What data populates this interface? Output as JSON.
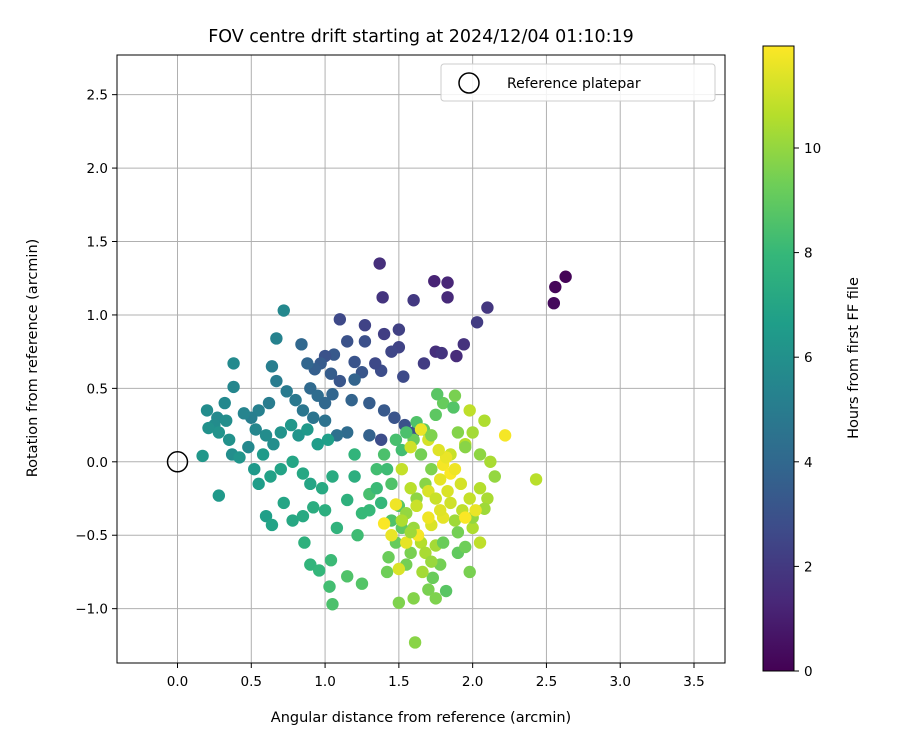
{
  "chart_data": {
    "type": "scatter",
    "title": "FOV centre drift starting at 2024/12/04 01:10:19",
    "xlabel": "Angular distance from reference (arcmin)",
    "ylabel": "Rotation from reference (arcmin)",
    "xlim": [
      -0.41,
      3.71
    ],
    "ylim": [
      -1.37,
      2.77
    ],
    "xticks": [
      "0.0",
      "0.5",
      "1.0",
      "1.5",
      "2.0",
      "2.5",
      "3.0",
      "3.5"
    ],
    "yticks": [
      "−1.0",
      "−0.5",
      "0.0",
      "0.5",
      "1.0",
      "1.5",
      "2.0",
      "2.5"
    ],
    "xtick_values": [
      0,
      0.5,
      1,
      1.5,
      2,
      2.5,
      3,
      3.5
    ],
    "ytick_values": [
      -1,
      -0.5,
      0,
      0.5,
      1,
      1.5,
      2,
      2.5
    ],
    "grid": true,
    "legend": {
      "placement": "top-right",
      "entries": [
        "Reference platepar"
      ]
    },
    "reference_point": {
      "x": 0.0,
      "y": 0.0,
      "label": "Reference platepar"
    },
    "colorbar": {
      "label": "Hours from first FF file",
      "colormap": "viridis",
      "range": [
        0,
        11.95
      ],
      "ticks": [
        "0",
        "2",
        "4",
        "6",
        "8",
        "10"
      ],
      "tick_values": [
        0,
        2,
        4,
        6,
        8,
        10
      ]
    },
    "points": [
      {
        "x": 2.63,
        "y": 1.26,
        "h": 0.1
      },
      {
        "x": 2.56,
        "y": 1.19,
        "h": 0.2
      },
      {
        "x": 2.55,
        "y": 1.08,
        "h": 0.3
      },
      {
        "x": 1.37,
        "y": 1.35,
        "h": 1.6
      },
      {
        "x": 1.39,
        "y": 1.12,
        "h": 1.8
      },
      {
        "x": 1.74,
        "y": 1.23,
        "h": 1.2
      },
      {
        "x": 1.83,
        "y": 1.22,
        "h": 1.3
      },
      {
        "x": 1.83,
        "y": 1.12,
        "h": 1.4
      },
      {
        "x": 1.6,
        "y": 1.1,
        "h": 2.0
      },
      {
        "x": 2.1,
        "y": 1.05,
        "h": 1.9
      },
      {
        "x": 2.03,
        "y": 0.95,
        "h": 2.1
      },
      {
        "x": 1.5,
        "y": 0.9,
        "h": 2.3
      },
      {
        "x": 1.4,
        "y": 0.87,
        "h": 2.2
      },
      {
        "x": 1.27,
        "y": 0.93,
        "h": 2.4
      },
      {
        "x": 1.1,
        "y": 0.97,
        "h": 2.6
      },
      {
        "x": 1.94,
        "y": 0.8,
        "h": 1.7
      },
      {
        "x": 1.89,
        "y": 0.72,
        "h": 1.5
      },
      {
        "x": 1.75,
        "y": 0.75,
        "h": 1.6
      },
      {
        "x": 1.79,
        "y": 0.74,
        "h": 1.8
      },
      {
        "x": 1.67,
        "y": 0.67,
        "h": 2.1
      },
      {
        "x": 1.5,
        "y": 0.78,
        "h": 2.4
      },
      {
        "x": 1.45,
        "y": 0.75,
        "h": 2.5
      },
      {
        "x": 1.53,
        "y": 0.58,
        "h": 2.7
      },
      {
        "x": 1.38,
        "y": 0.62,
        "h": 2.8
      },
      {
        "x": 1.34,
        "y": 0.67,
        "h": 2.6
      },
      {
        "x": 1.27,
        "y": 0.82,
        "h": 2.9
      },
      {
        "x": 1.15,
        "y": 0.82,
        "h": 3.0
      },
      {
        "x": 1.2,
        "y": 0.68,
        "h": 3.1
      },
      {
        "x": 1.25,
        "y": 0.61,
        "h": 3.2
      },
      {
        "x": 1.06,
        "y": 0.73,
        "h": 3.3
      },
      {
        "x": 1.0,
        "y": 0.72,
        "h": 3.0
      },
      {
        "x": 0.97,
        "y": 0.67,
        "h": 3.4
      },
      {
        "x": 0.93,
        "y": 0.63,
        "h": 3.6
      },
      {
        "x": 1.04,
        "y": 0.6,
        "h": 3.5
      },
      {
        "x": 1.1,
        "y": 0.55,
        "h": 3.2
      },
      {
        "x": 1.2,
        "y": 0.56,
        "h": 3.8
      },
      {
        "x": 0.88,
        "y": 0.67,
        "h": 3.9
      },
      {
        "x": 0.84,
        "y": 0.8,
        "h": 4.0
      },
      {
        "x": 0.9,
        "y": 0.5,
        "h": 4.1
      },
      {
        "x": 0.95,
        "y": 0.45,
        "h": 4.2
      },
      {
        "x": 1.0,
        "y": 0.4,
        "h": 4.0
      },
      {
        "x": 1.05,
        "y": 0.46,
        "h": 3.9
      },
      {
        "x": 1.18,
        "y": 0.42,
        "h": 3.8
      },
      {
        "x": 1.3,
        "y": 0.4,
        "h": 3.5
      },
      {
        "x": 1.4,
        "y": 0.35,
        "h": 3.3
      },
      {
        "x": 1.47,
        "y": 0.3,
        "h": 3.1
      },
      {
        "x": 1.54,
        "y": 0.25,
        "h": 3.0
      },
      {
        "x": 1.6,
        "y": 0.2,
        "h": 2.9
      },
      {
        "x": 1.38,
        "y": 0.15,
        "h": 2.8
      },
      {
        "x": 1.3,
        "y": 0.18,
        "h": 3.7
      },
      {
        "x": 1.15,
        "y": 0.2,
        "h": 4.2
      },
      {
        "x": 1.08,
        "y": 0.18,
        "h": 4.4
      },
      {
        "x": 1.0,
        "y": 0.28,
        "h": 4.5
      },
      {
        "x": 0.92,
        "y": 0.3,
        "h": 4.6
      },
      {
        "x": 0.85,
        "y": 0.35,
        "h": 4.7
      },
      {
        "x": 0.8,
        "y": 0.42,
        "h": 4.8
      },
      {
        "x": 0.74,
        "y": 0.48,
        "h": 4.9
      },
      {
        "x": 0.67,
        "y": 0.55,
        "h": 5.0
      },
      {
        "x": 0.64,
        "y": 0.65,
        "h": 5.1
      },
      {
        "x": 0.67,
        "y": 0.84,
        "h": 5.3
      },
      {
        "x": 0.72,
        "y": 1.03,
        "h": 5.6
      },
      {
        "x": 0.62,
        "y": 0.4,
        "h": 5.0
      },
      {
        "x": 0.55,
        "y": 0.35,
        "h": 5.2
      },
      {
        "x": 0.5,
        "y": 0.3,
        "h": 5.1
      },
      {
        "x": 0.45,
        "y": 0.33,
        "h": 5.4
      },
      {
        "x": 0.38,
        "y": 0.51,
        "h": 5.5
      },
      {
        "x": 0.38,
        "y": 0.67,
        "h": 5.7
      },
      {
        "x": 0.32,
        "y": 0.4,
        "h": 5.6
      },
      {
        "x": 0.2,
        "y": 0.35,
        "h": 5.8
      },
      {
        "x": 0.27,
        "y": 0.3,
        "h": 5.7
      },
      {
        "x": 0.33,
        "y": 0.28,
        "h": 5.9
      },
      {
        "x": 0.25,
        "y": 0.25,
        "h": 5.8
      },
      {
        "x": 0.21,
        "y": 0.23,
        "h": 6.0
      },
      {
        "x": 0.28,
        "y": 0.2,
        "h": 6.1
      },
      {
        "x": 0.35,
        "y": 0.15,
        "h": 6.0
      },
      {
        "x": 0.37,
        "y": 0.05,
        "h": 5.9
      },
      {
        "x": 0.42,
        "y": 0.03,
        "h": 6.2
      },
      {
        "x": 0.48,
        "y": 0.1,
        "h": 5.6
      },
      {
        "x": 0.53,
        "y": 0.22,
        "h": 5.5
      },
      {
        "x": 0.6,
        "y": 0.18,
        "h": 5.8
      },
      {
        "x": 0.65,
        "y": 0.12,
        "h": 5.9
      },
      {
        "x": 0.7,
        "y": 0.2,
        "h": 6.1
      },
      {
        "x": 0.77,
        "y": 0.25,
        "h": 6.3
      },
      {
        "x": 0.82,
        "y": 0.18,
        "h": 6.2
      },
      {
        "x": 0.88,
        "y": 0.22,
        "h": 6.4
      },
      {
        "x": 0.95,
        "y": 0.12,
        "h": 6.6
      },
      {
        "x": 1.02,
        "y": 0.15,
        "h": 6.7
      },
      {
        "x": 0.58,
        "y": 0.05,
        "h": 6.5
      },
      {
        "x": 0.52,
        "y": -0.05,
        "h": 6.4
      },
      {
        "x": 0.17,
        "y": 0.04,
        "h": 6.3
      },
      {
        "x": 0.28,
        "y": -0.23,
        "h": 6.4
      },
      {
        "x": 0.55,
        "y": -0.15,
        "h": 6.6
      },
      {
        "x": 0.63,
        "y": -0.1,
        "h": 6.8
      },
      {
        "x": 0.7,
        "y": -0.05,
        "h": 6.9
      },
      {
        "x": 0.78,
        "y": 0.0,
        "h": 7.0
      },
      {
        "x": 0.85,
        "y": -0.08,
        "h": 7.1
      },
      {
        "x": 0.9,
        "y": -0.15,
        "h": 7.0
      },
      {
        "x": 0.98,
        "y": -0.18,
        "h": 7.2
      },
      {
        "x": 1.05,
        "y": -0.1,
        "h": 7.3
      },
      {
        "x": 0.6,
        "y": -0.37,
        "h": 6.7
      },
      {
        "x": 0.64,
        "y": -0.43,
        "h": 6.9
      },
      {
        "x": 0.72,
        "y": -0.28,
        "h": 7.0
      },
      {
        "x": 0.78,
        "y": -0.4,
        "h": 7.1
      },
      {
        "x": 0.85,
        "y": -0.37,
        "h": 7.2
      },
      {
        "x": 0.92,
        "y": -0.31,
        "h": 7.4
      },
      {
        "x": 1.0,
        "y": -0.33,
        "h": 7.5
      },
      {
        "x": 0.86,
        "y": -0.55,
        "h": 7.6
      },
      {
        "x": 0.9,
        "y": -0.7,
        "h": 7.8
      },
      {
        "x": 0.96,
        "y": -0.74,
        "h": 7.9
      },
      {
        "x": 1.04,
        "y": -0.67,
        "h": 8.1
      },
      {
        "x": 1.03,
        "y": -0.85,
        "h": 8.3
      },
      {
        "x": 1.05,
        "y": -0.97,
        "h": 8.5
      },
      {
        "x": 1.08,
        "y": -0.45,
        "h": 7.7
      },
      {
        "x": 1.15,
        "y": -0.26,
        "h": 7.6
      },
      {
        "x": 1.2,
        "y": -0.1,
        "h": 7.5
      },
      {
        "x": 1.2,
        "y": 0.05,
        "h": 7.8
      },
      {
        "x": 1.25,
        "y": -0.35,
        "h": 8.0
      },
      {
        "x": 1.22,
        "y": -0.5,
        "h": 8.2
      },
      {
        "x": 1.15,
        "y": -0.78,
        "h": 8.6
      },
      {
        "x": 1.25,
        "y": -0.83,
        "h": 8.7
      },
      {
        "x": 1.3,
        "y": -0.22,
        "h": 8.4
      },
      {
        "x": 1.35,
        "y": -0.05,
        "h": 8.3
      },
      {
        "x": 1.4,
        "y": 0.05,
        "h": 8.5
      },
      {
        "x": 1.45,
        "y": -0.15,
        "h": 8.6
      },
      {
        "x": 1.5,
        "y": -0.3,
        "h": 8.8
      },
      {
        "x": 1.52,
        "y": -0.45,
        "h": 9.0
      },
      {
        "x": 1.48,
        "y": -0.55,
        "h": 9.1
      },
      {
        "x": 1.43,
        "y": -0.65,
        "h": 9.2
      },
      {
        "x": 1.42,
        "y": -0.75,
        "h": 9.3
      },
      {
        "x": 1.55,
        "y": -0.7,
        "h": 9.4
      },
      {
        "x": 1.58,
        "y": -0.62,
        "h": 9.5
      },
      {
        "x": 1.5,
        "y": -0.96,
        "h": 9.6
      },
      {
        "x": 1.6,
        "y": -0.93,
        "h": 9.7
      },
      {
        "x": 1.61,
        "y": -1.23,
        "h": 9.8
      },
      {
        "x": 1.7,
        "y": -0.87,
        "h": 9.5
      },
      {
        "x": 1.75,
        "y": -0.93,
        "h": 9.6
      },
      {
        "x": 1.73,
        "y": -0.79,
        "h": 9.2
      },
      {
        "x": 1.78,
        "y": -0.7,
        "h": 9.4
      },
      {
        "x": 1.82,
        "y": -0.88,
        "h": 8.8
      },
      {
        "x": 1.9,
        "y": -0.62,
        "h": 9.0
      },
      {
        "x": 1.95,
        "y": -0.58,
        "h": 9.3
      },
      {
        "x": 1.98,
        "y": -0.75,
        "h": 9.5
      },
      {
        "x": 2.05,
        "y": -0.55,
        "h": 10.8
      },
      {
        "x": 2.0,
        "y": -0.45,
        "h": 10.5
      },
      {
        "x": 1.88,
        "y": -0.4,
        "h": 10.2
      },
      {
        "x": 1.8,
        "y": -0.38,
        "h": 11.5
      },
      {
        "x": 1.72,
        "y": -0.43,
        "h": 11.3
      },
      {
        "x": 1.65,
        "y": -0.55,
        "h": 10.6
      },
      {
        "x": 1.68,
        "y": -0.62,
        "h": 10.4
      },
      {
        "x": 1.75,
        "y": -0.57,
        "h": 10.3
      },
      {
        "x": 1.6,
        "y": -0.45,
        "h": 10.1
      },
      {
        "x": 1.55,
        "y": -0.35,
        "h": 10.0
      },
      {
        "x": 1.62,
        "y": -0.25,
        "h": 9.9
      },
      {
        "x": 1.68,
        "y": -0.15,
        "h": 9.8
      },
      {
        "x": 1.72,
        "y": -0.05,
        "h": 9.6
      },
      {
        "x": 1.65,
        "y": 0.05,
        "h": 9.4
      },
      {
        "x": 1.6,
        "y": 0.15,
        "h": 9.2
      },
      {
        "x": 1.67,
        "y": 0.22,
        "h": 9.0
      },
      {
        "x": 1.75,
        "y": 0.32,
        "h": 8.9
      },
      {
        "x": 1.8,
        "y": 0.4,
        "h": 9.1
      },
      {
        "x": 1.76,
        "y": 0.46,
        "h": 8.8
      },
      {
        "x": 1.87,
        "y": 0.37,
        "h": 8.7
      },
      {
        "x": 1.62,
        "y": 0.27,
        "h": 8.6
      },
      {
        "x": 1.55,
        "y": 0.2,
        "h": 8.5
      },
      {
        "x": 1.48,
        "y": 0.15,
        "h": 8.4
      },
      {
        "x": 1.52,
        "y": 0.08,
        "h": 8.3
      },
      {
        "x": 1.42,
        "y": -0.05,
        "h": 8.2
      },
      {
        "x": 1.35,
        "y": -0.18,
        "h": 8.1
      },
      {
        "x": 1.3,
        "y": -0.33,
        "h": 8.0
      },
      {
        "x": 1.38,
        "y": -0.28,
        "h": 7.9
      },
      {
        "x": 1.45,
        "y": -0.4,
        "h": 8.6
      },
      {
        "x": 1.98,
        "y": 0.35,
        "h": 10.8
      },
      {
        "x": 2.08,
        "y": 0.28,
        "h": 10.5
      },
      {
        "x": 2.0,
        "y": 0.2,
        "h": 10.3
      },
      {
        "x": 1.95,
        "y": 0.12,
        "h": 10.6
      },
      {
        "x": 1.85,
        "y": 0.05,
        "h": 11.0
      },
      {
        "x": 1.8,
        "y": -0.02,
        "h": 11.8
      },
      {
        "x": 1.85,
        "y": -0.08,
        "h": 11.9
      },
      {
        "x": 1.88,
        "y": -0.05,
        "h": 11.7
      },
      {
        "x": 1.82,
        "y": 0.03,
        "h": 11.6
      },
      {
        "x": 1.77,
        "y": 0.08,
        "h": 11.4
      },
      {
        "x": 1.7,
        "y": 0.15,
        "h": 11.2
      },
      {
        "x": 1.65,
        "y": 0.22,
        "h": 11.6
      },
      {
        "x": 1.58,
        "y": 0.1,
        "h": 11.1
      },
      {
        "x": 1.52,
        "y": -0.05,
        "h": 10.9
      },
      {
        "x": 1.58,
        "y": -0.18,
        "h": 10.7
      },
      {
        "x": 1.62,
        "y": -0.3,
        "h": 11.0
      },
      {
        "x": 1.7,
        "y": -0.2,
        "h": 11.3
      },
      {
        "x": 1.78,
        "y": -0.12,
        "h": 11.5
      },
      {
        "x": 1.92,
        "y": -0.15,
        "h": 11.2
      },
      {
        "x": 1.98,
        "y": -0.25,
        "h": 10.9
      },
      {
        "x": 2.05,
        "y": -0.18,
        "h": 10.6
      },
      {
        "x": 2.1,
        "y": -0.25,
        "h": 10.4
      },
      {
        "x": 2.08,
        "y": -0.32,
        "h": 10.2
      },
      {
        "x": 2.0,
        "y": -0.38,
        "h": 10.0
      },
      {
        "x": 1.93,
        "y": -0.33,
        "h": 10.8
      },
      {
        "x": 1.85,
        "y": -0.28,
        "h": 11.1
      },
      {
        "x": 1.78,
        "y": -0.33,
        "h": 11.4
      },
      {
        "x": 1.7,
        "y": -0.38,
        "h": 11.7
      },
      {
        "x": 1.63,
        "y": -0.5,
        "h": 11.8
      },
      {
        "x": 1.55,
        "y": -0.55,
        "h": 11.5
      },
      {
        "x": 1.5,
        "y": -0.73,
        "h": 11.3
      },
      {
        "x": 1.45,
        "y": -0.5,
        "h": 11.6
      },
      {
        "x": 1.4,
        "y": -0.42,
        "h": 11.9
      },
      {
        "x": 1.48,
        "y": -0.29,
        "h": 11.7
      },
      {
        "x": 1.52,
        "y": -0.4,
        "h": 10.5
      },
      {
        "x": 1.58,
        "y": -0.48,
        "h": 10.2
      },
      {
        "x": 2.22,
        "y": 0.18,
        "h": 11.8
      },
      {
        "x": 2.43,
        "y": -0.12,
        "h": 10.7
      },
      {
        "x": 2.12,
        "y": 0.0,
        "h": 10.4
      },
      {
        "x": 2.15,
        "y": -0.1,
        "h": 10.0
      },
      {
        "x": 2.05,
        "y": 0.05,
        "h": 9.9
      },
      {
        "x": 1.9,
        "y": 0.2,
        "h": 9.7
      },
      {
        "x": 1.88,
        "y": 0.45,
        "h": 9.5
      },
      {
        "x": 1.95,
        "y": 0.1,
        "h": 9.8
      },
      {
        "x": 1.72,
        "y": 0.18,
        "h": 9.6
      },
      {
        "x": 1.9,
        "y": -0.48,
        "h": 9.4
      },
      {
        "x": 1.8,
        "y": -0.55,
        "h": 9.2
      },
      {
        "x": 1.72,
        "y": -0.68,
        "h": 10.1
      },
      {
        "x": 1.66,
        "y": -0.75,
        "h": 10.3
      },
      {
        "x": 1.95,
        "y": -0.38,
        "h": 11.9
      },
      {
        "x": 2.02,
        "y": -0.33,
        "h": 11.6
      },
      {
        "x": 1.83,
        "y": -0.2,
        "h": 11.3
      },
      {
        "x": 1.75,
        "y": -0.25,
        "h": 11.0
      }
    ]
  }
}
